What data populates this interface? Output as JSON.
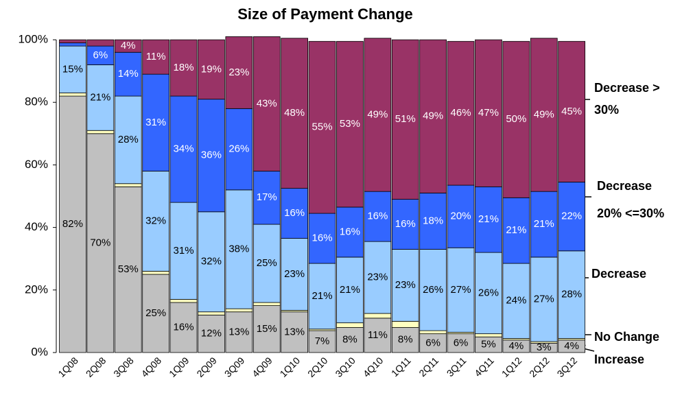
{
  "chart_data": {
    "type": "bar",
    "stacked": true,
    "title": "Size of Payment Change",
    "categories": [
      "1Q08",
      "2Q08",
      "3Q08",
      "4Q08",
      "1Q09",
      "2Q09",
      "3Q09",
      "4Q09",
      "1Q10",
      "2Q10",
      "3Q10",
      "4Q10",
      "1Q11",
      "2Q11",
      "3Q11",
      "4Q11",
      "1Q12",
      "2Q12",
      "3Q12"
    ],
    "ylim": [
      0,
      100
    ],
    "yticks": [
      {
        "value": 0,
        "label": "0%"
      },
      {
        "value": 20,
        "label": "20%"
      },
      {
        "value": 40,
        "label": "40%"
      },
      {
        "value": 60,
        "label": "60%"
      },
      {
        "value": 80,
        "label": "80%"
      },
      {
        "value": 100,
        "label": "100%"
      }
    ],
    "series": [
      {
        "name": "Increase",
        "color": "#c0c0c0",
        "label_color": "#000000",
        "values": [
          82,
          70,
          53,
          25,
          16,
          12,
          13,
          15,
          13,
          7,
          8,
          11,
          8,
          6,
          6,
          5,
          4,
          3,
          4
        ],
        "value_labels": [
          "82%",
          "70%",
          "53%",
          "25%",
          "16%",
          "12%",
          "13%",
          "15%",
          "13%",
          "7%",
          "8%",
          "11%",
          "8%",
          "6%",
          "6%",
          "5%",
          "4%",
          "3%",
          "4%"
        ]
      },
      {
        "name": "No Change",
        "color": "#ffffc0",
        "label_color": "#000000",
        "values": [
          1,
          1,
          1,
          1,
          1,
          1,
          1,
          1,
          0.5,
          0.5,
          1.5,
          1.5,
          2,
          1,
          0.5,
          1,
          0.5,
          0.5,
          0.5
        ],
        "value_labels": [
          null,
          null,
          null,
          null,
          null,
          null,
          null,
          null,
          null,
          null,
          null,
          null,
          null,
          null,
          null,
          null,
          null,
          null,
          null
        ]
      },
      {
        "name": "Decrease",
        "color": "#99ccff",
        "label_color": "#000000",
        "values": [
          15,
          21,
          28,
          32,
          31,
          32,
          38,
          25,
          23,
          21,
          21,
          23,
          23,
          26,
          27,
          26,
          24,
          27,
          28
        ],
        "value_labels": [
          "15%",
          "21%",
          "28%",
          "32%",
          "31%",
          "32%",
          "38%",
          "25%",
          "23%",
          "21%",
          "21%",
          "23%",
          "23%",
          "26%",
          "27%",
          "26%",
          "24%",
          "27%",
          "28%"
        ]
      },
      {
        "name": "Decrease 20% <=30%",
        "color": "#3366ff",
        "label_color": "#ffffff",
        "values": [
          1,
          6,
          14,
          31,
          34,
          36,
          26,
          17,
          16,
          16,
          16,
          16,
          16,
          18,
          20,
          21,
          21,
          21,
          22
        ],
        "value_labels": [
          null,
          "6%",
          "14%",
          "31%",
          "34%",
          "36%",
          "26%",
          "17%",
          "16%",
          "16%",
          "16%",
          "16%",
          "16%",
          "18%",
          "20%",
          "21%",
          "21%",
          "21%",
          "22%"
        ]
      },
      {
        "name": "Decrease > 30%",
        "color": "#993366",
        "label_color": "#ffffff",
        "values": [
          1,
          2,
          4,
          11,
          18,
          19,
          23,
          43,
          48,
          55,
          53,
          49,
          51,
          49,
          46,
          47,
          50,
          49,
          45
        ],
        "value_labels": [
          null,
          null,
          "4%",
          "11%",
          "18%",
          "19%",
          "23%",
          "43%",
          "48%",
          "55%",
          "53%",
          "49%",
          "51%",
          "49%",
          "46%",
          "47%",
          "50%",
          "49%",
          "45%"
        ]
      }
    ]
  }
}
